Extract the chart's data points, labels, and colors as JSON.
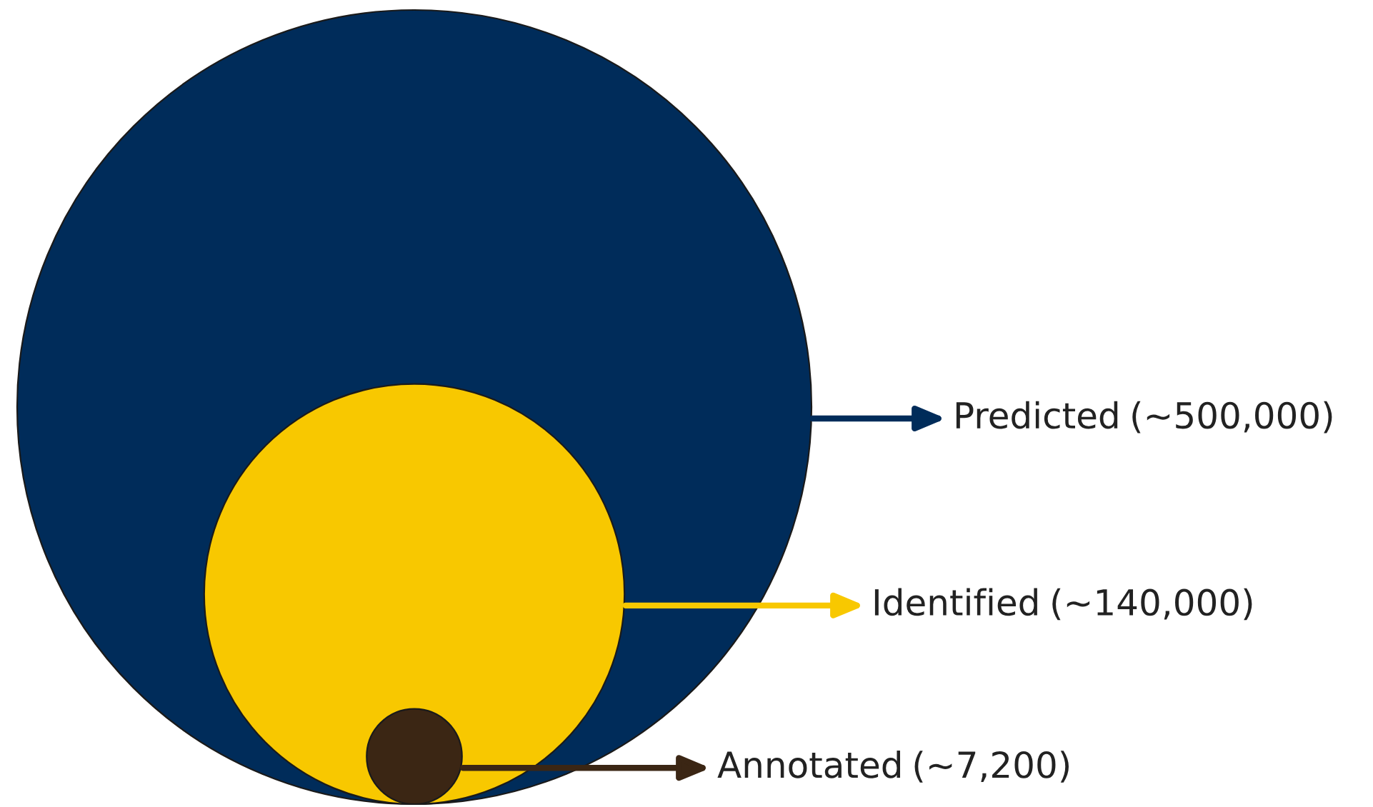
{
  "chart_data": {
    "type": "other",
    "categories": [
      "Predicted",
      "Identified",
      "Annotated"
    ],
    "values": [
      500000,
      140000,
      7200
    ],
    "value_labels": [
      "(~500,000)",
      "(~140,000)",
      "(~7,200)"
    ],
    "colors": [
      "#002c5a",
      "#f8c800",
      "#3b2614"
    ]
  }
}
